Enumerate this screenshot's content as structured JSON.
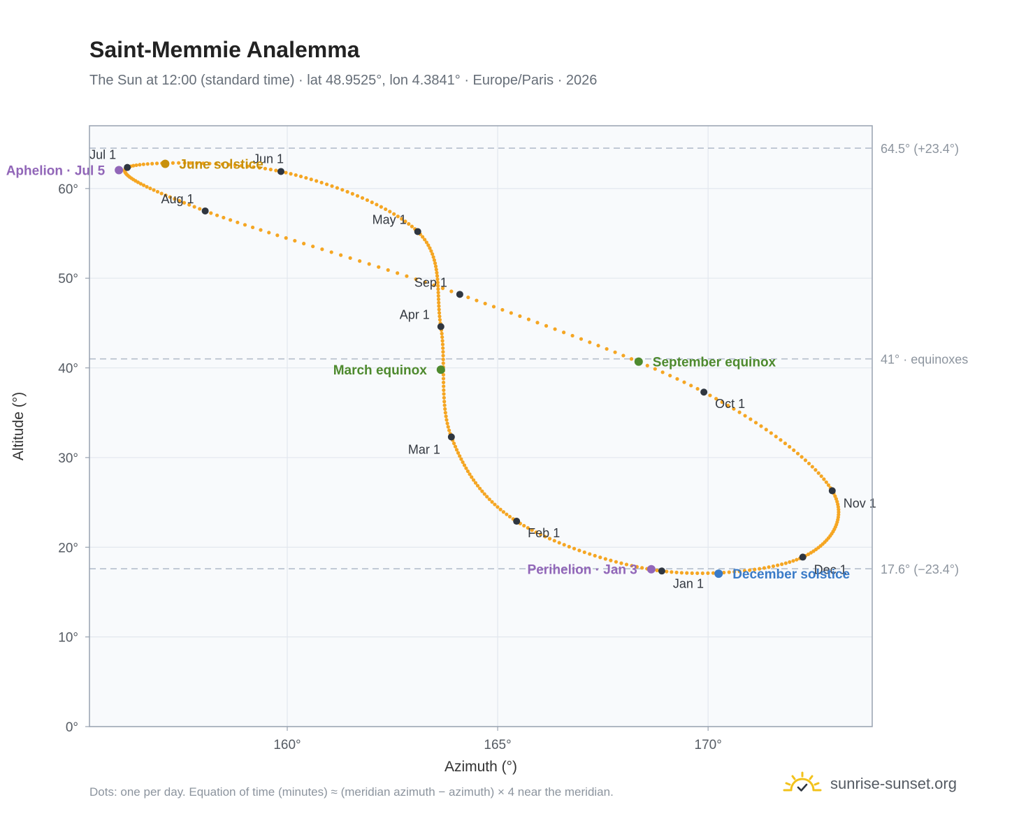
{
  "header": {
    "title": "Saint-Memmie Analemma",
    "subtitle": "The Sun at 12:00 (standard time) · lat 48.9525°, lon 4.3841° · Europe/Paris · 2026"
  },
  "footer": {
    "note": "Dots: one per day. Equation of time (minutes) ≈ (meridian azimuth − azimuth) × 4 near the meridian.",
    "brand": "sunrise-sunset.org"
  },
  "colors": {
    "path": "#f5a623",
    "month_marker": "#2f3640",
    "june_solstice": "#c8900a",
    "december_solstice": "#3a7bc8",
    "equinox": "#4e8a2e",
    "apsis": "#9166b8"
  },
  "chart_data": {
    "type": "scatter",
    "title": "Saint-Memmie Analemma",
    "xlabel": "Azimuth (°)",
    "ylabel": "Altitude (°)",
    "xlim": [
      155.3,
      173.9
    ],
    "ylim": [
      0,
      67
    ],
    "x_ticks": [
      {
        "value": 160,
        "label": "160°"
      },
      {
        "value": 165,
        "label": "165°"
      },
      {
        "value": 170,
        "label": "170°"
      }
    ],
    "y_ticks": [
      {
        "value": 0,
        "label": "0°"
      },
      {
        "value": 10,
        "label": "10°"
      },
      {
        "value": 20,
        "label": "20°"
      },
      {
        "value": 30,
        "label": "30°"
      },
      {
        "value": 40,
        "label": "40°"
      },
      {
        "value": 50,
        "label": "50°"
      },
      {
        "value": 60,
        "label": "60°"
      }
    ],
    "grid": true,
    "reference_lines": [
      {
        "y": 64.5,
        "label": "64.5° (+23.4°)"
      },
      {
        "y": 41.0,
        "label": "41° · equinoxes"
      },
      {
        "y": 17.6,
        "label": "17.6° (−23.4°)"
      }
    ],
    "month_markers": [
      {
        "label": "Jan 1",
        "azimuth": 168.9,
        "altitude": 17.35
      },
      {
        "label": "Feb 1",
        "azimuth": 165.45,
        "altitude": 22.9
      },
      {
        "label": "Mar 1",
        "azimuth": 163.9,
        "altitude": 32.3
      },
      {
        "label": "Apr 1",
        "azimuth": 163.65,
        "altitude": 44.6
      },
      {
        "label": "May 1",
        "azimuth": 163.1,
        "altitude": 55.2
      },
      {
        "label": "Jun 1",
        "azimuth": 159.85,
        "altitude": 61.9
      },
      {
        "label": "Jul 1",
        "azimuth": 156.2,
        "altitude": 62.35
      },
      {
        "label": "Aug 1",
        "azimuth": 158.05,
        "altitude": 57.5
      },
      {
        "label": "Sep 1",
        "azimuth": 164.1,
        "altitude": 48.2
      },
      {
        "label": "Oct 1",
        "azimuth": 169.9,
        "altitude": 37.3
      },
      {
        "label": "Nov 1",
        "azimuth": 172.95,
        "altitude": 26.3
      },
      {
        "label": "Dec 1",
        "azimuth": 172.25,
        "altitude": 18.9
      }
    ],
    "events": [
      {
        "label": "June solstice",
        "azimuth": 157.1,
        "altitude": 62.75,
        "color": "#c8900a",
        "label_side": "right"
      },
      {
        "label": "December solstice",
        "azimuth": 170.25,
        "altitude": 17.05,
        "color": "#3a7bc8",
        "label_side": "right"
      },
      {
        "label": "March equinox",
        "azimuth": 163.65,
        "altitude": 39.8,
        "color": "#4e8a2e",
        "label_side": "left"
      },
      {
        "label": "September equinox",
        "azimuth": 168.35,
        "altitude": 40.7,
        "color": "#4e8a2e",
        "label_side": "right"
      },
      {
        "label": "Aphelion · Jul 5",
        "azimuth": 156.0,
        "altitude": 62.05,
        "color": "#9166b8",
        "label_side": "left"
      },
      {
        "label": "Perihelion · Jan 3",
        "azimuth": 168.65,
        "altitude": 17.55,
        "color": "#9166b8",
        "label_side": "left"
      }
    ]
  }
}
